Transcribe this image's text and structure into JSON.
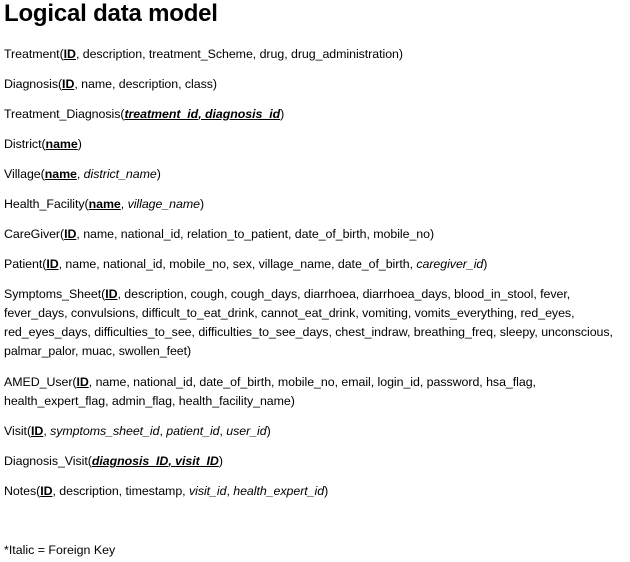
{
  "title": "Logical data model",
  "entities": [
    {
      "name": "Treatment",
      "attributes": [
        {
          "text": "ID",
          "kind": "pk"
        },
        {
          "text": "description",
          "kind": "plain"
        },
        {
          "text": "treatment_Scheme",
          "kind": "plain"
        },
        {
          "text": "drug",
          "kind": "plain"
        },
        {
          "text": "drug_administration",
          "kind": "plain"
        }
      ]
    },
    {
      "name": "Diagnosis",
      "attributes": [
        {
          "text": "ID",
          "kind": "pk"
        },
        {
          "text": "name",
          "kind": "plain"
        },
        {
          "text": "description",
          "kind": "plain"
        },
        {
          "text": "class",
          "kind": "plain"
        }
      ]
    },
    {
      "name": "Treatment_Diagnosis",
      "attributes": [
        {
          "text": "treatment_id",
          "kind": "pkfk"
        },
        {
          "text": "diagnosis_id",
          "kind": "pkfk"
        }
      ]
    },
    {
      "name": "District",
      "attributes": [
        {
          "text": "name",
          "kind": "pk"
        }
      ]
    },
    {
      "name": "Village",
      "attributes": [
        {
          "text": "name",
          "kind": "pk"
        },
        {
          "text": "district_name",
          "kind": "fk"
        }
      ]
    },
    {
      "name": "Health_Facility",
      "attributes": [
        {
          "text": "name",
          "kind": "pk"
        },
        {
          "text": "village_name",
          "kind": "fk"
        }
      ]
    },
    {
      "name": "CareGiver",
      "attributes": [
        {
          "text": "ID",
          "kind": "pk"
        },
        {
          "text": "name",
          "kind": "plain"
        },
        {
          "text": "national_id",
          "kind": "plain"
        },
        {
          "text": "relation_to_patient",
          "kind": "plain"
        },
        {
          "text": "date_of_birth",
          "kind": "plain"
        },
        {
          "text": "mobile_no",
          "kind": "plain"
        }
      ]
    },
    {
      "name": "Patient",
      "attributes": [
        {
          "text": "ID",
          "kind": "pk"
        },
        {
          "text": "name",
          "kind": "plain"
        },
        {
          "text": "national_id",
          "kind": "plain"
        },
        {
          "text": "mobile_no",
          "kind": "plain"
        },
        {
          "text": "sex",
          "kind": "plain"
        },
        {
          "text": "village_name",
          "kind": "plain"
        },
        {
          "text": "date_of_birth",
          "kind": "plain"
        },
        {
          "text": "caregiver_id",
          "kind": "fk"
        }
      ]
    },
    {
      "name": "Symptoms_Sheet",
      "attributes": [
        {
          "text": "ID",
          "kind": "pk"
        },
        {
          "text": "description",
          "kind": "plain"
        },
        {
          "text": "cough",
          "kind": "plain"
        },
        {
          "text": "cough_days",
          "kind": "plain"
        },
        {
          "text": "diarrhoea",
          "kind": "plain"
        },
        {
          "text": "diarrhoea_days",
          "kind": "plain"
        },
        {
          "text": "blood_in_stool",
          "kind": "plain"
        },
        {
          "text": "fever",
          "kind": "plain"
        },
        {
          "text": "fever_days",
          "kind": "plain"
        },
        {
          "text": "convulsions",
          "kind": "plain"
        },
        {
          "text": "difficult_to_eat_drink",
          "kind": "plain"
        },
        {
          "text": "cannot_eat_drink",
          "kind": "plain"
        },
        {
          "text": "vomiting",
          "kind": "plain"
        },
        {
          "text": "vomits_everything",
          "kind": "plain"
        },
        {
          "text": "red_eyes",
          "kind": "plain"
        },
        {
          "text": "red_eyes_days",
          "kind": "plain"
        },
        {
          "text": "difficulties_to_see",
          "kind": "plain"
        },
        {
          "text": "difficulties_to_see_days",
          "kind": "plain"
        },
        {
          "text": "chest_indraw",
          "kind": "plain"
        },
        {
          "text": "breathing_freq",
          "kind": "plain"
        },
        {
          "text": "sleepy",
          "kind": "plain"
        },
        {
          "text": "unconscious",
          "kind": "plain"
        },
        {
          "text": "palmar_palor",
          "kind": "plain"
        },
        {
          "text": "muac",
          "kind": "plain"
        },
        {
          "text": "swollen_feet",
          "kind": "plain"
        }
      ]
    },
    {
      "name": "AMED_User",
      "attributes": [
        {
          "text": "ID",
          "kind": "pk"
        },
        {
          "text": "name",
          "kind": "plain"
        },
        {
          "text": "national_id",
          "kind": "plain"
        },
        {
          "text": "date_of_birth",
          "kind": "plain"
        },
        {
          "text": "mobile_no",
          "kind": "plain"
        },
        {
          "text": "email",
          "kind": "plain"
        },
        {
          "text": "login_id",
          "kind": "plain"
        },
        {
          "text": "password",
          "kind": "plain"
        },
        {
          "text": "hsa_flag",
          "kind": "plain"
        },
        {
          "text": "health_expert_flag",
          "kind": "plain"
        },
        {
          "text": "admin_flag",
          "kind": "plain"
        },
        {
          "text": "health_facility_name",
          "kind": "plain"
        }
      ]
    },
    {
      "name": "Visit",
      "attributes": [
        {
          "text": "ID",
          "kind": "pk"
        },
        {
          "text": "symptoms_sheet_id",
          "kind": "fk"
        },
        {
          "text": "patient_id",
          "kind": "fk"
        },
        {
          "text": "user_id",
          "kind": "fk"
        }
      ]
    },
    {
      "name": "Diagnosis_Visit",
      "attributes": [
        {
          "text": "diagnosis_ID",
          "kind": "pkfk"
        },
        {
          "text": "visit_ID",
          "kind": "pkfk"
        }
      ]
    },
    {
      "name": "Notes",
      "attributes": [
        {
          "text": "ID",
          "kind": "pk"
        },
        {
          "text": "description",
          "kind": "plain"
        },
        {
          "text": "timestamp",
          "kind": "plain"
        },
        {
          "text": "visit_id",
          "kind": "fk"
        },
        {
          "text": "health_expert_id",
          "kind": "fk"
        }
      ]
    }
  ],
  "footnote": "*Italic = Foreign Key"
}
